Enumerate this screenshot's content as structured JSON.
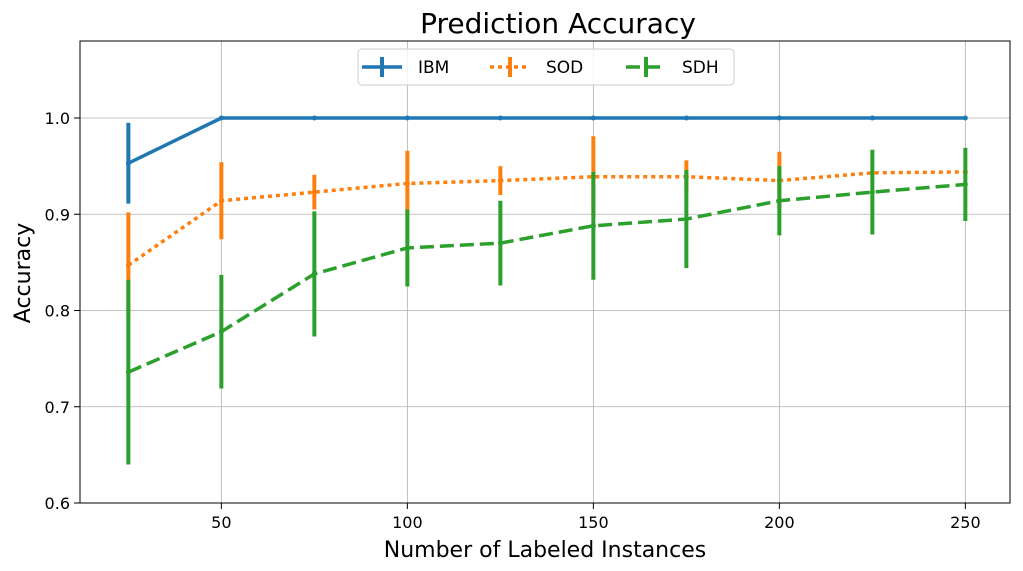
{
  "chart_data": {
    "type": "line",
    "title": "Prediction Accuracy",
    "xlabel": "Number of Labeled Instances",
    "ylabel": "Accuracy",
    "xlim": [
      12,
      262
    ],
    "ylim": [
      0.6,
      1.08
    ],
    "x_ticks": [
      50,
      100,
      150,
      200,
      250
    ],
    "y_ticks": [
      0.6,
      0.7,
      0.8,
      0.9,
      1.0
    ],
    "x_tick_labels": [
      "50",
      "100",
      "150",
      "200",
      "250"
    ],
    "y_tick_labels": [
      "0.6",
      "0.7",
      "0.8",
      "0.9",
      "1.0"
    ],
    "grid": true,
    "legend_position": "top-center",
    "x": [
      25,
      50,
      75,
      100,
      125,
      150,
      175,
      200,
      225,
      250
    ],
    "series": [
      {
        "name": "IBM",
        "color": "#1f77b4",
        "style": "solid",
        "values": [
          0.953,
          1.0,
          1.0,
          1.0,
          1.0,
          1.0,
          1.0,
          1.0,
          1.0,
          1.0
        ],
        "errors": [
          0.042,
          0.0,
          0.0,
          0.0,
          0.0,
          0.0,
          0.0,
          0.0,
          0.0,
          0.0
        ]
      },
      {
        "name": "SOD",
        "color": "#ff7f0e",
        "style": "dotted",
        "values": [
          0.847,
          0.914,
          0.923,
          0.932,
          0.935,
          0.939,
          0.939,
          0.935,
          0.943,
          0.944
        ],
        "errors": [
          0.055,
          0.04,
          0.018,
          0.034,
          0.015,
          0.042,
          0.017,
          0.03,
          0.0,
          0.0
        ]
      },
      {
        "name": "SDH",
        "color": "#2ca02c",
        "style": "dashed",
        "values": [
          0.736,
          0.778,
          0.838,
          0.865,
          0.87,
          0.888,
          0.895,
          0.914,
          0.923,
          0.931
        ],
        "errors": [
          0.096,
          0.059,
          0.065,
          0.04,
          0.044,
          0.056,
          0.051,
          0.036,
          0.044,
          0.038
        ]
      }
    ]
  }
}
